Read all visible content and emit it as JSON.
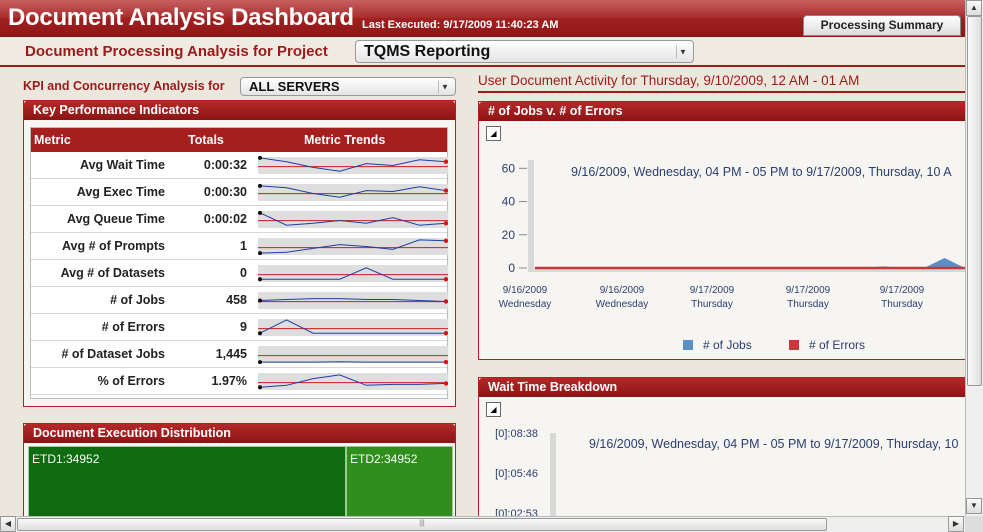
{
  "header": {
    "title": "Document Analysis Dashboard",
    "last_executed": "Last Executed:  9/17/2009 11:40:23 AM",
    "summary_tab": "Processing Summary"
  },
  "project": {
    "label": "Document Processing Analysis for Project",
    "selected": "TQMS Reporting"
  },
  "kpi_filter": {
    "label": "KPI and Concurrency Analysis for",
    "selected": "ALL SERVERS"
  },
  "activity_title": "User Document Activity for Thursday, 9/10/2009, 12 AM - 01 AM",
  "kpi_panel": {
    "title": "Key Performance Indicators",
    "columns": [
      "Metric",
      "Totals",
      "Metric Trends"
    ],
    "rows": [
      {
        "metric": "Avg Wait Time",
        "total": "0:00:32",
        "trend": [
          0.9,
          0.7,
          0.4,
          0.2,
          0.6,
          0.5,
          0.8,
          0.7
        ]
      },
      {
        "metric": "Avg Exec Time",
        "total": "0:00:30",
        "trend": [
          0.85,
          0.75,
          0.45,
          0.25,
          0.6,
          0.55,
          0.8,
          0.6
        ]
      },
      {
        "metric": "Avg Queue Time",
        "total": "0:00:02",
        "trend": [
          0.85,
          0.2,
          0.3,
          0.45,
          0.3,
          0.6,
          0.2,
          0.3
        ]
      },
      {
        "metric": "Avg # of Prompts",
        "total": "1",
        "trend": [
          0.15,
          0.2,
          0.4,
          0.6,
          0.5,
          0.35,
          0.85,
          0.8
        ]
      },
      {
        "metric": "Avg # of Datasets",
        "total": "0",
        "trend": [
          0.2,
          0.2,
          0.2,
          0.2,
          0.8,
          0.2,
          0.2,
          0.2
        ]
      },
      {
        "metric": "# of Jobs",
        "total": "458",
        "trend": [
          0.5,
          0.55,
          0.6,
          0.6,
          0.55,
          0.55,
          0.5,
          0.45
        ]
      },
      {
        "metric": "# of Errors",
        "total": "9",
        "trend": [
          0.2,
          0.9,
          0.2,
          0.2,
          0.2,
          0.2,
          0.2,
          0.2
        ]
      },
      {
        "metric": "# of Dataset Jobs",
        "total": "1,445",
        "trend": [
          0.1,
          0.1,
          0.1,
          0.12,
          0.1,
          0.1,
          0.1,
          0.1
        ]
      },
      {
        "metric": "% of Errors",
        "total": "1.97%",
        "trend": [
          0.2,
          0.3,
          0.65,
          0.85,
          0.3,
          0.35,
          0.35,
          0.4
        ]
      }
    ]
  },
  "distribution": {
    "title": "Document Execution Distribution",
    "tiles": [
      {
        "label": "ETD1:34952",
        "color": "#0f6b0f"
      },
      {
        "label": "ETD2:34952",
        "color": "#2f8e1c"
      }
    ]
  },
  "jobs_chart": {
    "title": "# of Jobs v. # of Errors",
    "subtitle": "9/16/2009, Wednesday, 04 PM - 05 PM to 9/17/2009, Thursday, 10 A",
    "x_ticks": [
      {
        "date": "9/16/2009",
        "day": "Wednesday"
      },
      {
        "date": "9/16/2009",
        "day": "Wednesday"
      },
      {
        "date": "9/17/2009",
        "day": "Thursday"
      },
      {
        "date": "9/17/2009",
        "day": "Thursday"
      },
      {
        "date": "9/17/2009",
        "day": "Thursday"
      }
    ],
    "y_ticks": [
      "60",
      "40",
      "20",
      "0"
    ],
    "legend": [
      "# of Jobs",
      "# of Errors"
    ],
    "colors": {
      "jobs": "#5b8fc8",
      "errors": "#c43a3a"
    }
  },
  "chart_data": {
    "type": "area",
    "title": "",
    "ylim": [
      0,
      65
    ],
    "series": [
      {
        "name": "# of Jobs",
        "values": [
          0,
          0,
          0,
          0,
          0,
          0,
          0,
          0,
          0,
          0,
          0,
          0,
          0,
          0,
          0,
          0,
          0,
          1,
          0,
          0,
          6,
          0
        ]
      },
      {
        "name": "# of Errors",
        "values": [
          0,
          0,
          0,
          0,
          0,
          0,
          0,
          0,
          0,
          0,
          0,
          0,
          0,
          0,
          0,
          0,
          0,
          0,
          0,
          0,
          0,
          0
        ]
      }
    ]
  },
  "wait_chart": {
    "title": "Wait Time Breakdown",
    "subtitle": "9/16/2009, Wednesday, 04 PM - 05 PM to 9/17/2009, Thursday, 10",
    "y_ticks": [
      "[0]:08:38",
      "[0]:05:46",
      "[0]:02:53"
    ]
  },
  "icons": [
    "zoom-icon",
    "scroll-up-icon",
    "scroll-down-icon",
    "scroll-left-icon",
    "scroll-right-icon",
    "dropdown-arrow-icon"
  ]
}
